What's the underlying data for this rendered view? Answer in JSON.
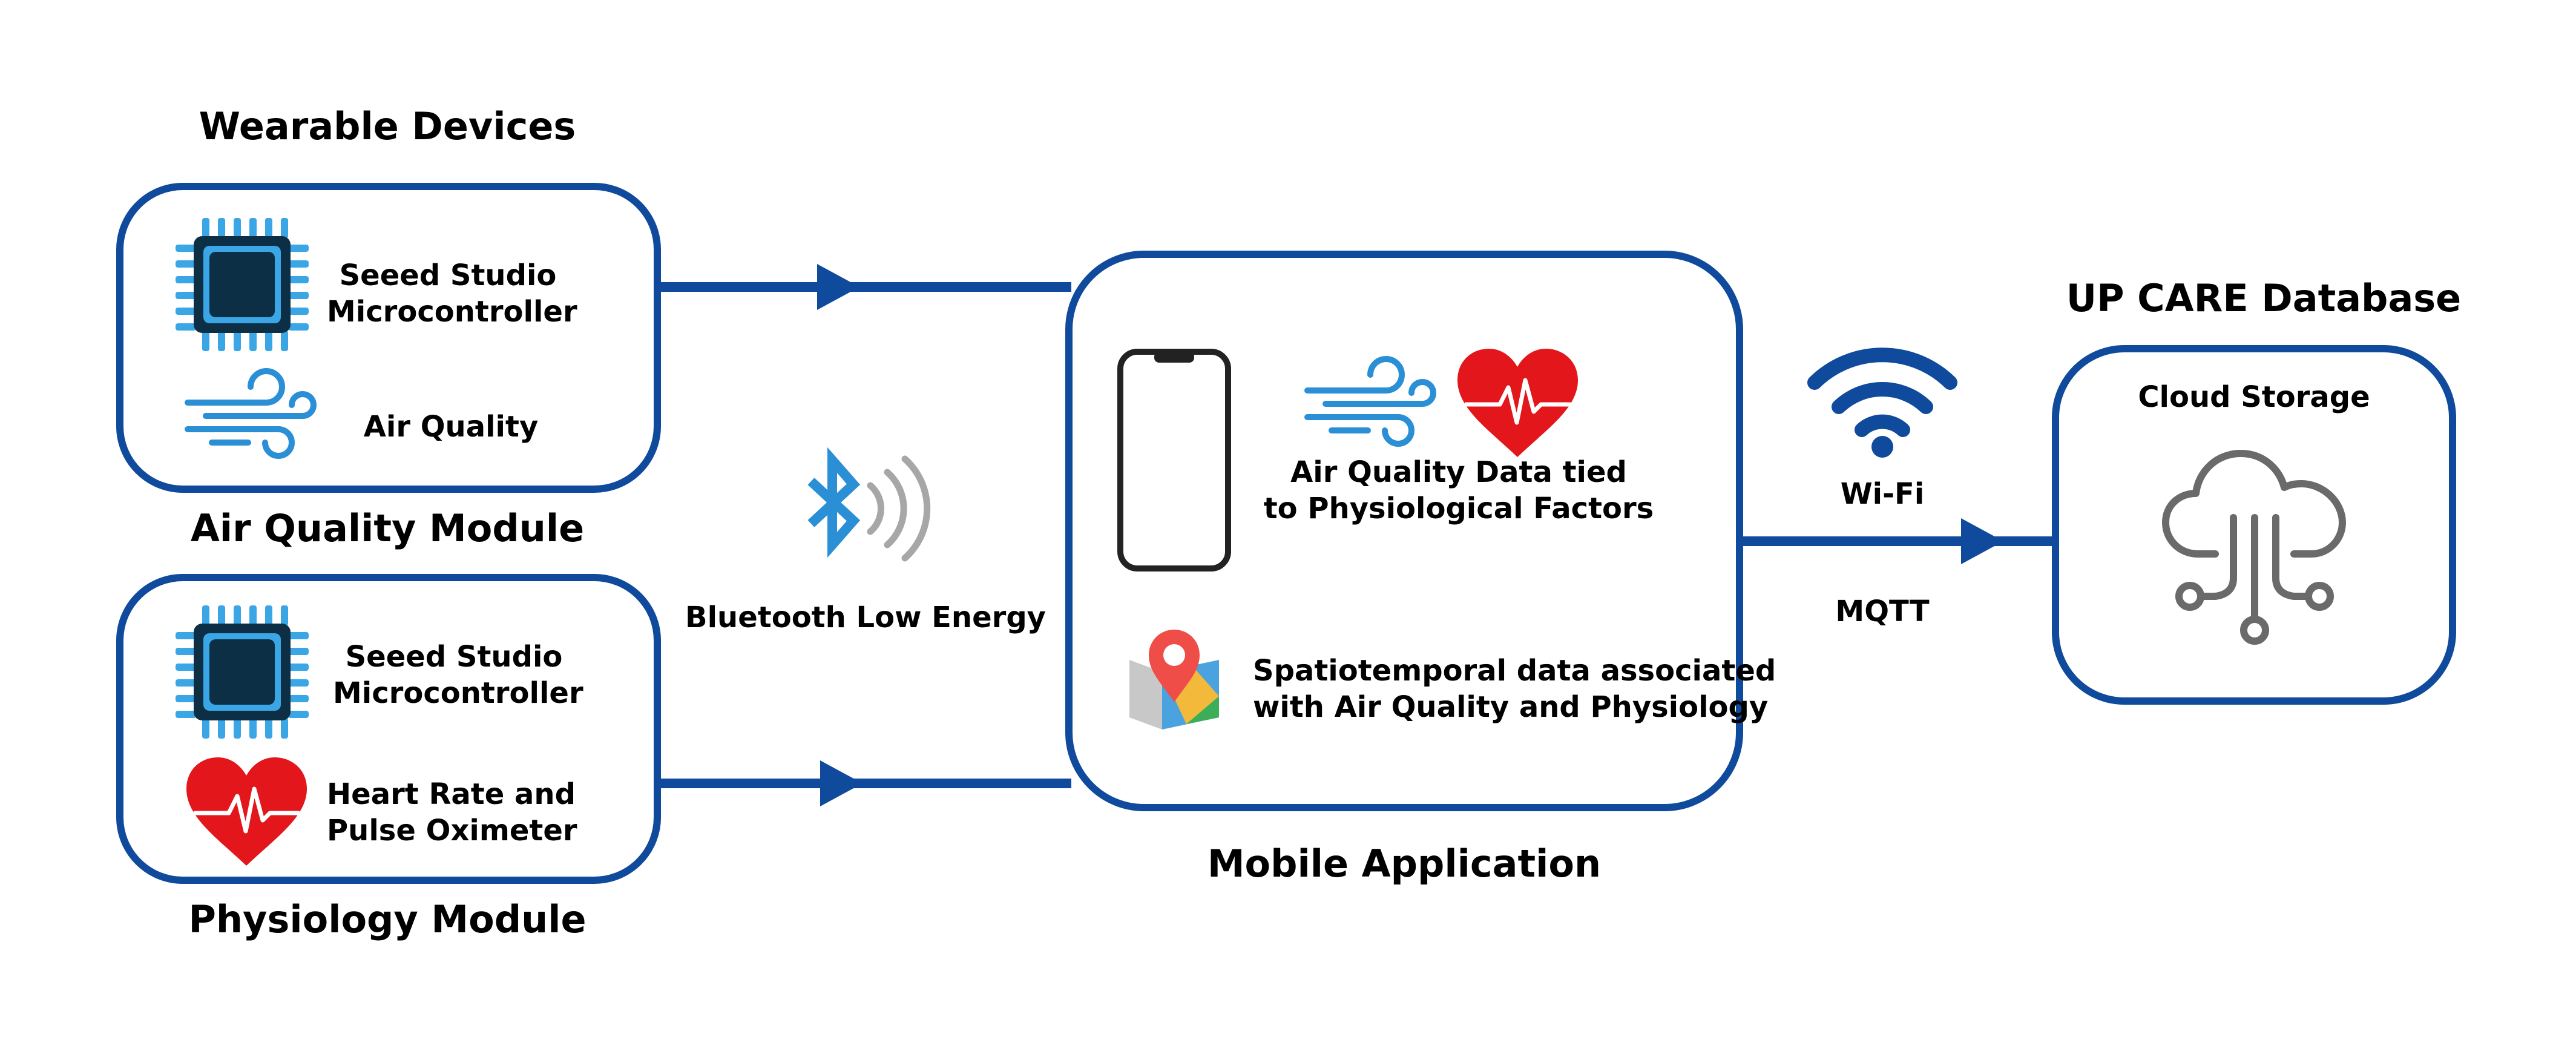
{
  "wearable": {
    "title": "Wearable Devices",
    "air_module": {
      "caption": "Air Quality Module",
      "mcu_line1": "Seeed Studio",
      "mcu_line2": "Microcontroller",
      "sensor_label": "Air Quality"
    },
    "physio_module": {
      "caption": "Physiology Module",
      "mcu_line1": "Seeed Studio",
      "mcu_line2": "Microcontroller",
      "sensor_line1": "Heart Rate and",
      "sensor_line2": "Pulse Oximeter"
    }
  },
  "link_ble": {
    "label": "Bluetooth Low Energy"
  },
  "mobile_app": {
    "caption": "Mobile Application",
    "data_line1": "Air Quality Data tied",
    "data_line2": "to Physiological Factors",
    "spatio_line1": "Spatiotemporal data associated",
    "spatio_line2": "with Air Quality and Physiology"
  },
  "link_wifi": {
    "label_top": "Wi-Fi",
    "label_bottom": "MQTT"
  },
  "database": {
    "title": "UP CARE Database",
    "box_label": "Cloud Storage"
  },
  "colors": {
    "border": "#0f4a9c",
    "chip_blue": "#3aa6e6",
    "chip_dark": "#0c2f45",
    "wind_blue": "#2b8fd6",
    "heart_red": "#e3161b",
    "bluetooth_blue": "#2b8fd6",
    "signal_gray": "#a7a7a7",
    "cloud_gray": "#6a6a6a"
  }
}
